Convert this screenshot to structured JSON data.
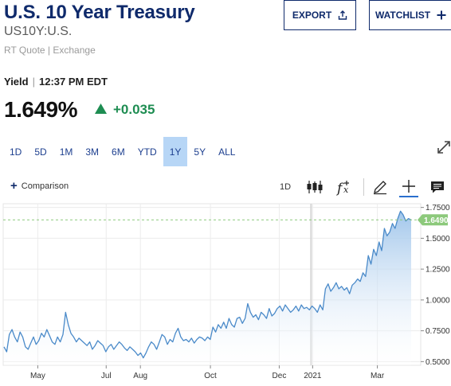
{
  "header": {
    "title": "U.S. 10 Year Treasury",
    "symbol": "US10Y:U.S.",
    "quote_source": "RT Quote | Exchange",
    "export_label": "EXPORT",
    "watchlist_label": "WATCHLIST"
  },
  "quote": {
    "yield_label": "Yield",
    "separator": "|",
    "time": "12:37 PM EDT",
    "price": "1.649%",
    "change": "+0.035",
    "change_color": "#1e8d52"
  },
  "ranges": [
    {
      "label": "1D",
      "active": false
    },
    {
      "label": "5D",
      "active": false
    },
    {
      "label": "1M",
      "active": false
    },
    {
      "label": "3M",
      "active": false
    },
    {
      "label": "6M",
      "active": false
    },
    {
      "label": "YTD",
      "active": false
    },
    {
      "label": "1Y",
      "active": true
    },
    {
      "label": "5Y",
      "active": false
    },
    {
      "label": "ALL",
      "active": false
    }
  ],
  "toolbar": {
    "comparison_label": "Comparison",
    "interval_label": "1D",
    "icons": [
      "candlestick-icon",
      "fx-icon",
      "draw-icon",
      "crosshair-icon",
      "news-icon"
    ]
  },
  "chart_data": {
    "type": "area",
    "title": "",
    "xlabel": "",
    "ylabel": "",
    "x_ticks": [
      "May",
      "Jul",
      "Aug",
      "Oct",
      "Dec",
      "2021",
      "Mar"
    ],
    "y_ticks": [
      "0.5000",
      "0.7500",
      "1.0000",
      "1.2500",
      "1.5000",
      "1.7500"
    ],
    "y_tick_values": [
      0.5,
      0.75,
      1.0,
      1.25,
      1.5,
      1.75
    ],
    "ylim": [
      0.47,
      1.78
    ],
    "last_price_label": "1.6490",
    "last_price": 1.649,
    "grid": true,
    "line_color": "#4a8ac9",
    "fill_top_color": "#9cc3ea",
    "tag_color": "#8cc97b",
    "series": [
      {
        "values": [
          0.62,
          0.58,
          0.72,
          0.76,
          0.7,
          0.66,
          0.74,
          0.7,
          0.62,
          0.6,
          0.65,
          0.7,
          0.64,
          0.67,
          0.73,
          0.7,
          0.76,
          0.71,
          0.66,
          0.64,
          0.7,
          0.66,
          0.72,
          0.9,
          0.8,
          0.73,
          0.7,
          0.66,
          0.69,
          0.67,
          0.65,
          0.63,
          0.66,
          0.6,
          0.63,
          0.67,
          0.65,
          0.63,
          0.58,
          0.62,
          0.64,
          0.6,
          0.63,
          0.66,
          0.64,
          0.61,
          0.59,
          0.62,
          0.6,
          0.58,
          0.55,
          0.57,
          0.53,
          0.57,
          0.62,
          0.66,
          0.64,
          0.6,
          0.66,
          0.72,
          0.7,
          0.64,
          0.68,
          0.66,
          0.73,
          0.77,
          0.7,
          0.67,
          0.68,
          0.66,
          0.69,
          0.65,
          0.68,
          0.7,
          0.69,
          0.67,
          0.7,
          0.68,
          0.78,
          0.74,
          0.8,
          0.77,
          0.82,
          0.77,
          0.85,
          0.8,
          0.78,
          0.85,
          0.86,
          0.81,
          0.85,
          0.97,
          0.9,
          0.86,
          0.88,
          0.84,
          0.9,
          0.88,
          0.85,
          0.93,
          0.87,
          0.89,
          0.93,
          0.95,
          0.91,
          0.96,
          0.93,
          0.9,
          0.92,
          0.95,
          0.91,
          0.96,
          0.93,
          0.94,
          0.92,
          0.95,
          0.93,
          0.9,
          0.96,
          0.92,
          1.09,
          1.13,
          1.07,
          1.1,
          1.14,
          1.09,
          1.11,
          1.08,
          1.1,
          1.05,
          1.12,
          1.14,
          1.17,
          1.15,
          1.22,
          1.19,
          1.36,
          1.29,
          1.41,
          1.36,
          1.47,
          1.4,
          1.58,
          1.52,
          1.55,
          1.62,
          1.58,
          1.66,
          1.72,
          1.69,
          1.64,
          1.66,
          1.649
        ]
      }
    ]
  }
}
